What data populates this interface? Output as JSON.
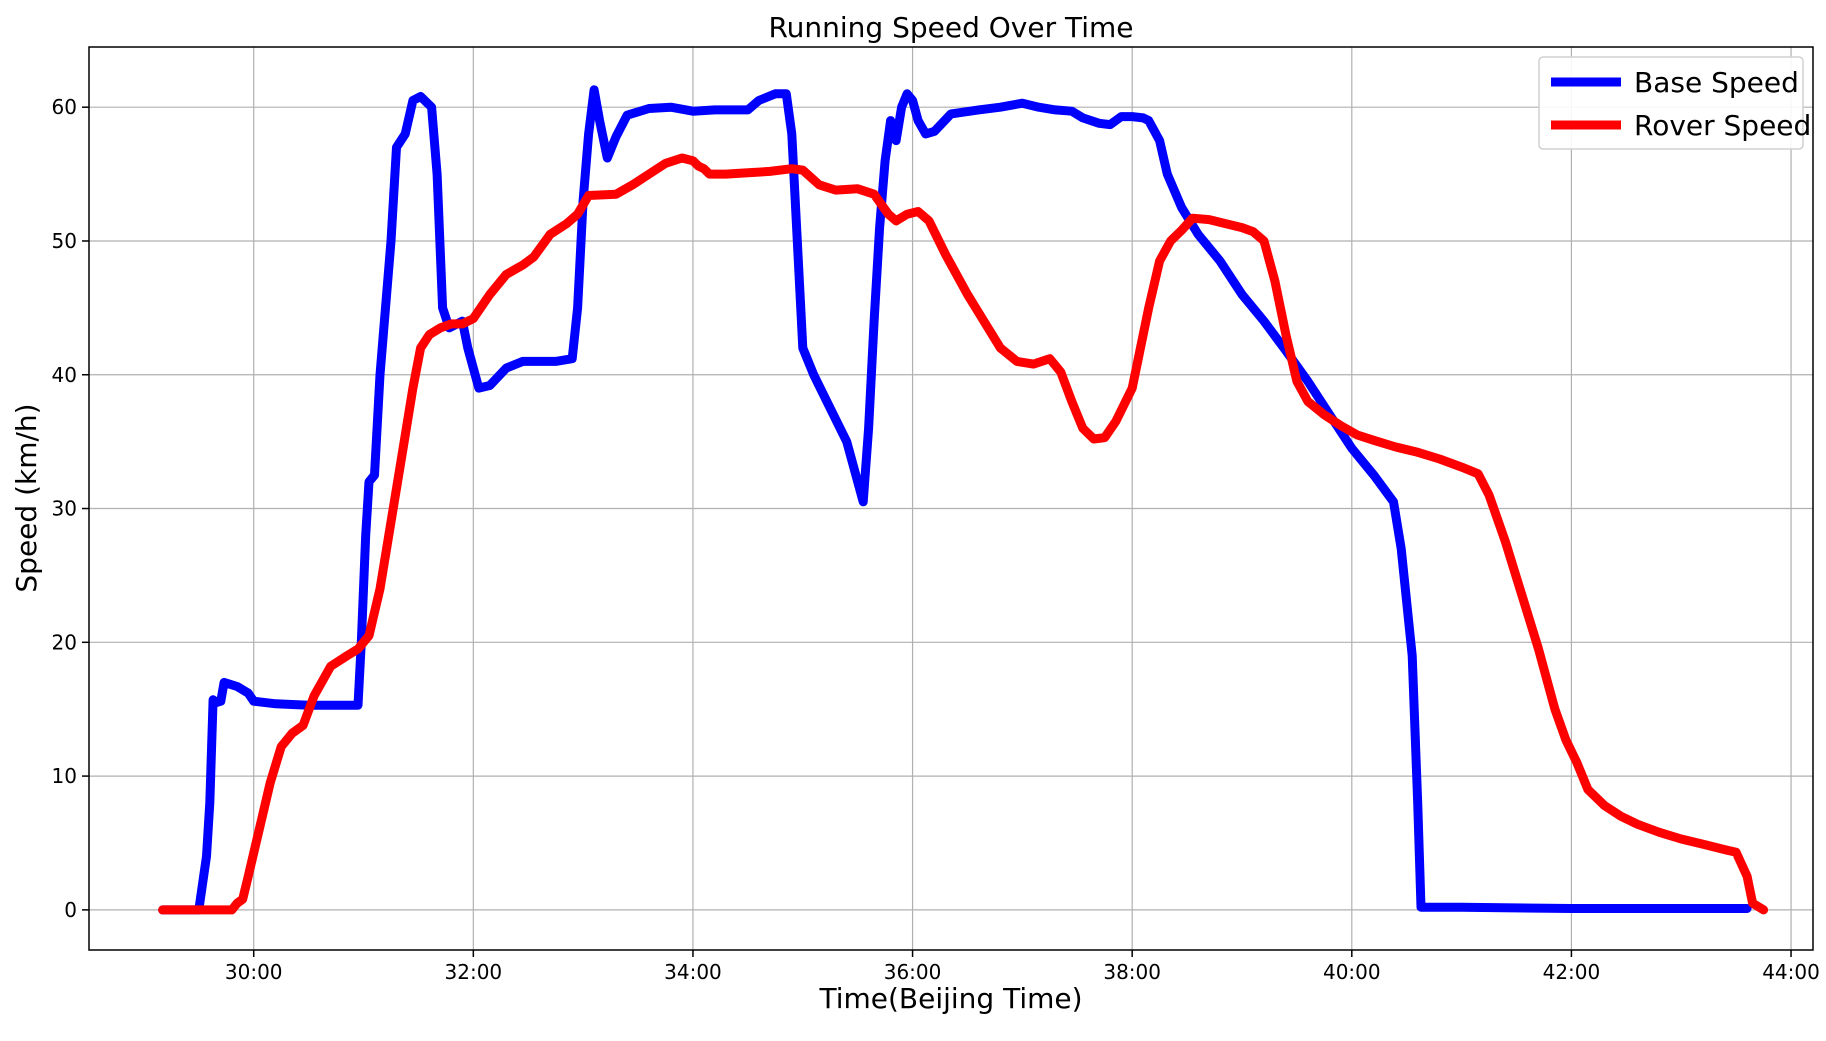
{
  "chart_data": {
    "type": "line",
    "title": "Running Speed Over Time",
    "xlabel": "Time(Beijing Time)",
    "ylabel": "Speed (km/h)",
    "x_unit": "minutes",
    "xlim": [
      28.5,
      44.2
    ],
    "ylim": [
      -3,
      64.5
    ],
    "xticks": [
      {
        "value": 30,
        "label": "30:00"
      },
      {
        "value": 32,
        "label": "32:00"
      },
      {
        "value": 34,
        "label": "34:00"
      },
      {
        "value": 36,
        "label": "36:00"
      },
      {
        "value": 38,
        "label": "38:00"
      },
      {
        "value": 40,
        "label": "40:00"
      },
      {
        "value": 42,
        "label": "42:00"
      },
      {
        "value": 44,
        "label": "44:00"
      }
    ],
    "yticks": [
      {
        "value": 0,
        "label": "0"
      },
      {
        "value": 10,
        "label": "10"
      },
      {
        "value": 20,
        "label": "20"
      },
      {
        "value": 30,
        "label": "30"
      },
      {
        "value": 40,
        "label": "40"
      },
      {
        "value": 50,
        "label": "50"
      },
      {
        "value": 60,
        "label": "60"
      }
    ],
    "grid": true,
    "legend_position": "top-right",
    "series": [
      {
        "name": "Base Speed",
        "color": "#0000ff",
        "points": [
          [
            29.17,
            0
          ],
          [
            29.5,
            0
          ],
          [
            29.57,
            4
          ],
          [
            29.6,
            8
          ],
          [
            29.63,
            15.7
          ],
          [
            29.66,
            15.5
          ],
          [
            29.7,
            15.6
          ],
          [
            29.73,
            17
          ],
          [
            29.85,
            16.7
          ],
          [
            29.95,
            16.2
          ],
          [
            30.0,
            15.6
          ],
          [
            30.2,
            15.4
          ],
          [
            30.5,
            15.3
          ],
          [
            30.8,
            15.3
          ],
          [
            30.95,
            15.3
          ],
          [
            30.98,
            20
          ],
          [
            31.02,
            28
          ],
          [
            31.05,
            32
          ],
          [
            31.1,
            32.5
          ],
          [
            31.15,
            40
          ],
          [
            31.2,
            45
          ],
          [
            31.25,
            50
          ],
          [
            31.3,
            57
          ],
          [
            31.38,
            58
          ],
          [
            31.45,
            60.5
          ],
          [
            31.52,
            60.8
          ],
          [
            31.62,
            60
          ],
          [
            31.67,
            55
          ],
          [
            31.72,
            45
          ],
          [
            31.78,
            43.5
          ],
          [
            31.9,
            44
          ],
          [
            31.95,
            42
          ],
          [
            32.05,
            39
          ],
          [
            32.15,
            39.2
          ],
          [
            32.3,
            40.5
          ],
          [
            32.45,
            41
          ],
          [
            32.6,
            41
          ],
          [
            32.75,
            41
          ],
          [
            32.9,
            41.2
          ],
          [
            32.95,
            45
          ],
          [
            33.0,
            53
          ],
          [
            33.05,
            58
          ],
          [
            33.1,
            61.3
          ],
          [
            33.15,
            59
          ],
          [
            33.22,
            56.2
          ],
          [
            33.3,
            57.8
          ],
          [
            33.4,
            59.4
          ],
          [
            33.6,
            59.9
          ],
          [
            33.8,
            60
          ],
          [
            34.0,
            59.7
          ],
          [
            34.2,
            59.8
          ],
          [
            34.4,
            59.8
          ],
          [
            34.5,
            59.8
          ],
          [
            34.6,
            60.5
          ],
          [
            34.75,
            61
          ],
          [
            34.85,
            61
          ],
          [
            34.9,
            58
          ],
          [
            34.95,
            50
          ],
          [
            35.0,
            42
          ],
          [
            35.1,
            40
          ],
          [
            35.25,
            37.5
          ],
          [
            35.4,
            35
          ],
          [
            35.5,
            32
          ],
          [
            35.55,
            30.5
          ],
          [
            35.6,
            36
          ],
          [
            35.65,
            44
          ],
          [
            35.7,
            51
          ],
          [
            35.75,
            56
          ],
          [
            35.8,
            59
          ],
          [
            35.85,
            57.5
          ],
          [
            35.9,
            60
          ],
          [
            35.95,
            61
          ],
          [
            36.0,
            60.5
          ],
          [
            36.05,
            59
          ],
          [
            36.12,
            58
          ],
          [
            36.2,
            58.2
          ],
          [
            36.35,
            59.5
          ],
          [
            36.6,
            59.8
          ],
          [
            36.8,
            60
          ],
          [
            37.0,
            60.3
          ],
          [
            37.15,
            60
          ],
          [
            37.3,
            59.8
          ],
          [
            37.45,
            59.7
          ],
          [
            37.55,
            59.2
          ],
          [
            37.7,
            58.8
          ],
          [
            37.8,
            58.7
          ],
          [
            37.9,
            59.3
          ],
          [
            38.0,
            59.3
          ],
          [
            38.1,
            59.2
          ],
          [
            38.15,
            59
          ],
          [
            38.25,
            57.5
          ],
          [
            38.32,
            55
          ],
          [
            38.45,
            52.5
          ],
          [
            38.6,
            50.5
          ],
          [
            38.8,
            48.5
          ],
          [
            39.0,
            46
          ],
          [
            39.2,
            44
          ],
          [
            39.4,
            41.8
          ],
          [
            39.6,
            39.5
          ],
          [
            39.8,
            37
          ],
          [
            40.0,
            34.5
          ],
          [
            40.2,
            32.5
          ],
          [
            40.38,
            30.5
          ],
          [
            40.45,
            27
          ],
          [
            40.5,
            23
          ],
          [
            40.55,
            19
          ],
          [
            40.6,
            8
          ],
          [
            40.63,
            0.2
          ],
          [
            41.0,
            0.2
          ],
          [
            42.0,
            0.1
          ],
          [
            43.0,
            0.1
          ],
          [
            43.6,
            0.1
          ]
        ]
      },
      {
        "name": "Rover Speed",
        "color": "#ff0000",
        "points": [
          [
            29.17,
            0
          ],
          [
            29.6,
            0
          ],
          [
            29.8,
            0
          ],
          [
            29.85,
            0.5
          ],
          [
            29.9,
            0.8
          ],
          [
            29.95,
            2.5
          ],
          [
            30.05,
            6
          ],
          [
            30.15,
            9.5
          ],
          [
            30.25,
            12.2
          ],
          [
            30.35,
            13.2
          ],
          [
            30.45,
            13.8
          ],
          [
            30.55,
            16
          ],
          [
            30.7,
            18.2
          ],
          [
            30.85,
            19
          ],
          [
            30.95,
            19.5
          ],
          [
            31.05,
            20.5
          ],
          [
            31.15,
            24
          ],
          [
            31.25,
            29
          ],
          [
            31.35,
            34
          ],
          [
            31.45,
            39
          ],
          [
            31.52,
            42
          ],
          [
            31.6,
            43
          ],
          [
            31.7,
            43.5
          ],
          [
            31.8,
            43.8
          ],
          [
            31.9,
            43.8
          ],
          [
            32.0,
            44.2
          ],
          [
            32.15,
            46
          ],
          [
            32.3,
            47.5
          ],
          [
            32.45,
            48.2
          ],
          [
            32.55,
            48.8
          ],
          [
            32.7,
            50.5
          ],
          [
            32.85,
            51.3
          ],
          [
            32.95,
            52
          ],
          [
            33.05,
            53.4
          ],
          [
            33.3,
            53.5
          ],
          [
            33.45,
            54.2
          ],
          [
            33.6,
            55
          ],
          [
            33.75,
            55.8
          ],
          [
            33.9,
            56.2
          ],
          [
            34.0,
            56
          ],
          [
            34.05,
            55.6
          ],
          [
            34.1,
            55.4
          ],
          [
            34.15,
            55
          ],
          [
            34.3,
            55
          ],
          [
            34.5,
            55.1
          ],
          [
            34.7,
            55.2
          ],
          [
            34.9,
            55.4
          ],
          [
            35.0,
            55.3
          ],
          [
            35.15,
            54.2
          ],
          [
            35.3,
            53.8
          ],
          [
            35.5,
            53.9
          ],
          [
            35.65,
            53.5
          ],
          [
            35.78,
            52
          ],
          [
            35.85,
            51.5
          ],
          [
            35.95,
            52
          ],
          [
            36.05,
            52.2
          ],
          [
            36.15,
            51.5
          ],
          [
            36.3,
            49
          ],
          [
            36.5,
            46
          ],
          [
            36.65,
            44
          ],
          [
            36.8,
            42
          ],
          [
            36.95,
            41
          ],
          [
            37.1,
            40.8
          ],
          [
            37.25,
            41.2
          ],
          [
            37.35,
            40.2
          ],
          [
            37.45,
            38
          ],
          [
            37.55,
            36
          ],
          [
            37.65,
            35.2
          ],
          [
            37.75,
            35.3
          ],
          [
            37.85,
            36.5
          ],
          [
            38.0,
            39
          ],
          [
            38.15,
            45
          ],
          [
            38.25,
            48.5
          ],
          [
            38.35,
            50
          ],
          [
            38.45,
            50.8
          ],
          [
            38.55,
            51.7
          ],
          [
            38.7,
            51.6
          ],
          [
            38.85,
            51.3
          ],
          [
            39.0,
            51
          ],
          [
            39.1,
            50.7
          ],
          [
            39.2,
            50
          ],
          [
            39.3,
            47
          ],
          [
            39.4,
            43
          ],
          [
            39.5,
            39.5
          ],
          [
            39.6,
            38
          ],
          [
            39.75,
            37
          ],
          [
            39.9,
            36.2
          ],
          [
            40.05,
            35.5
          ],
          [
            40.2,
            35.1
          ],
          [
            40.4,
            34.6
          ],
          [
            40.6,
            34.2
          ],
          [
            40.8,
            33.7
          ],
          [
            41.0,
            33.1
          ],
          [
            41.15,
            32.6
          ],
          [
            41.25,
            31
          ],
          [
            41.4,
            27.5
          ],
          [
            41.55,
            23.5
          ],
          [
            41.7,
            19.5
          ],
          [
            41.85,
            15
          ],
          [
            41.95,
            12.7
          ],
          [
            42.05,
            11
          ],
          [
            42.15,
            9
          ],
          [
            42.3,
            7.8
          ],
          [
            42.45,
            7
          ],
          [
            42.6,
            6.4
          ],
          [
            42.8,
            5.8
          ],
          [
            43.0,
            5.3
          ],
          [
            43.2,
            4.9
          ],
          [
            43.4,
            4.5
          ],
          [
            43.5,
            4.3
          ],
          [
            43.6,
            2.5
          ],
          [
            43.65,
            0.5
          ],
          [
            43.75,
            0
          ]
        ]
      }
    ]
  }
}
